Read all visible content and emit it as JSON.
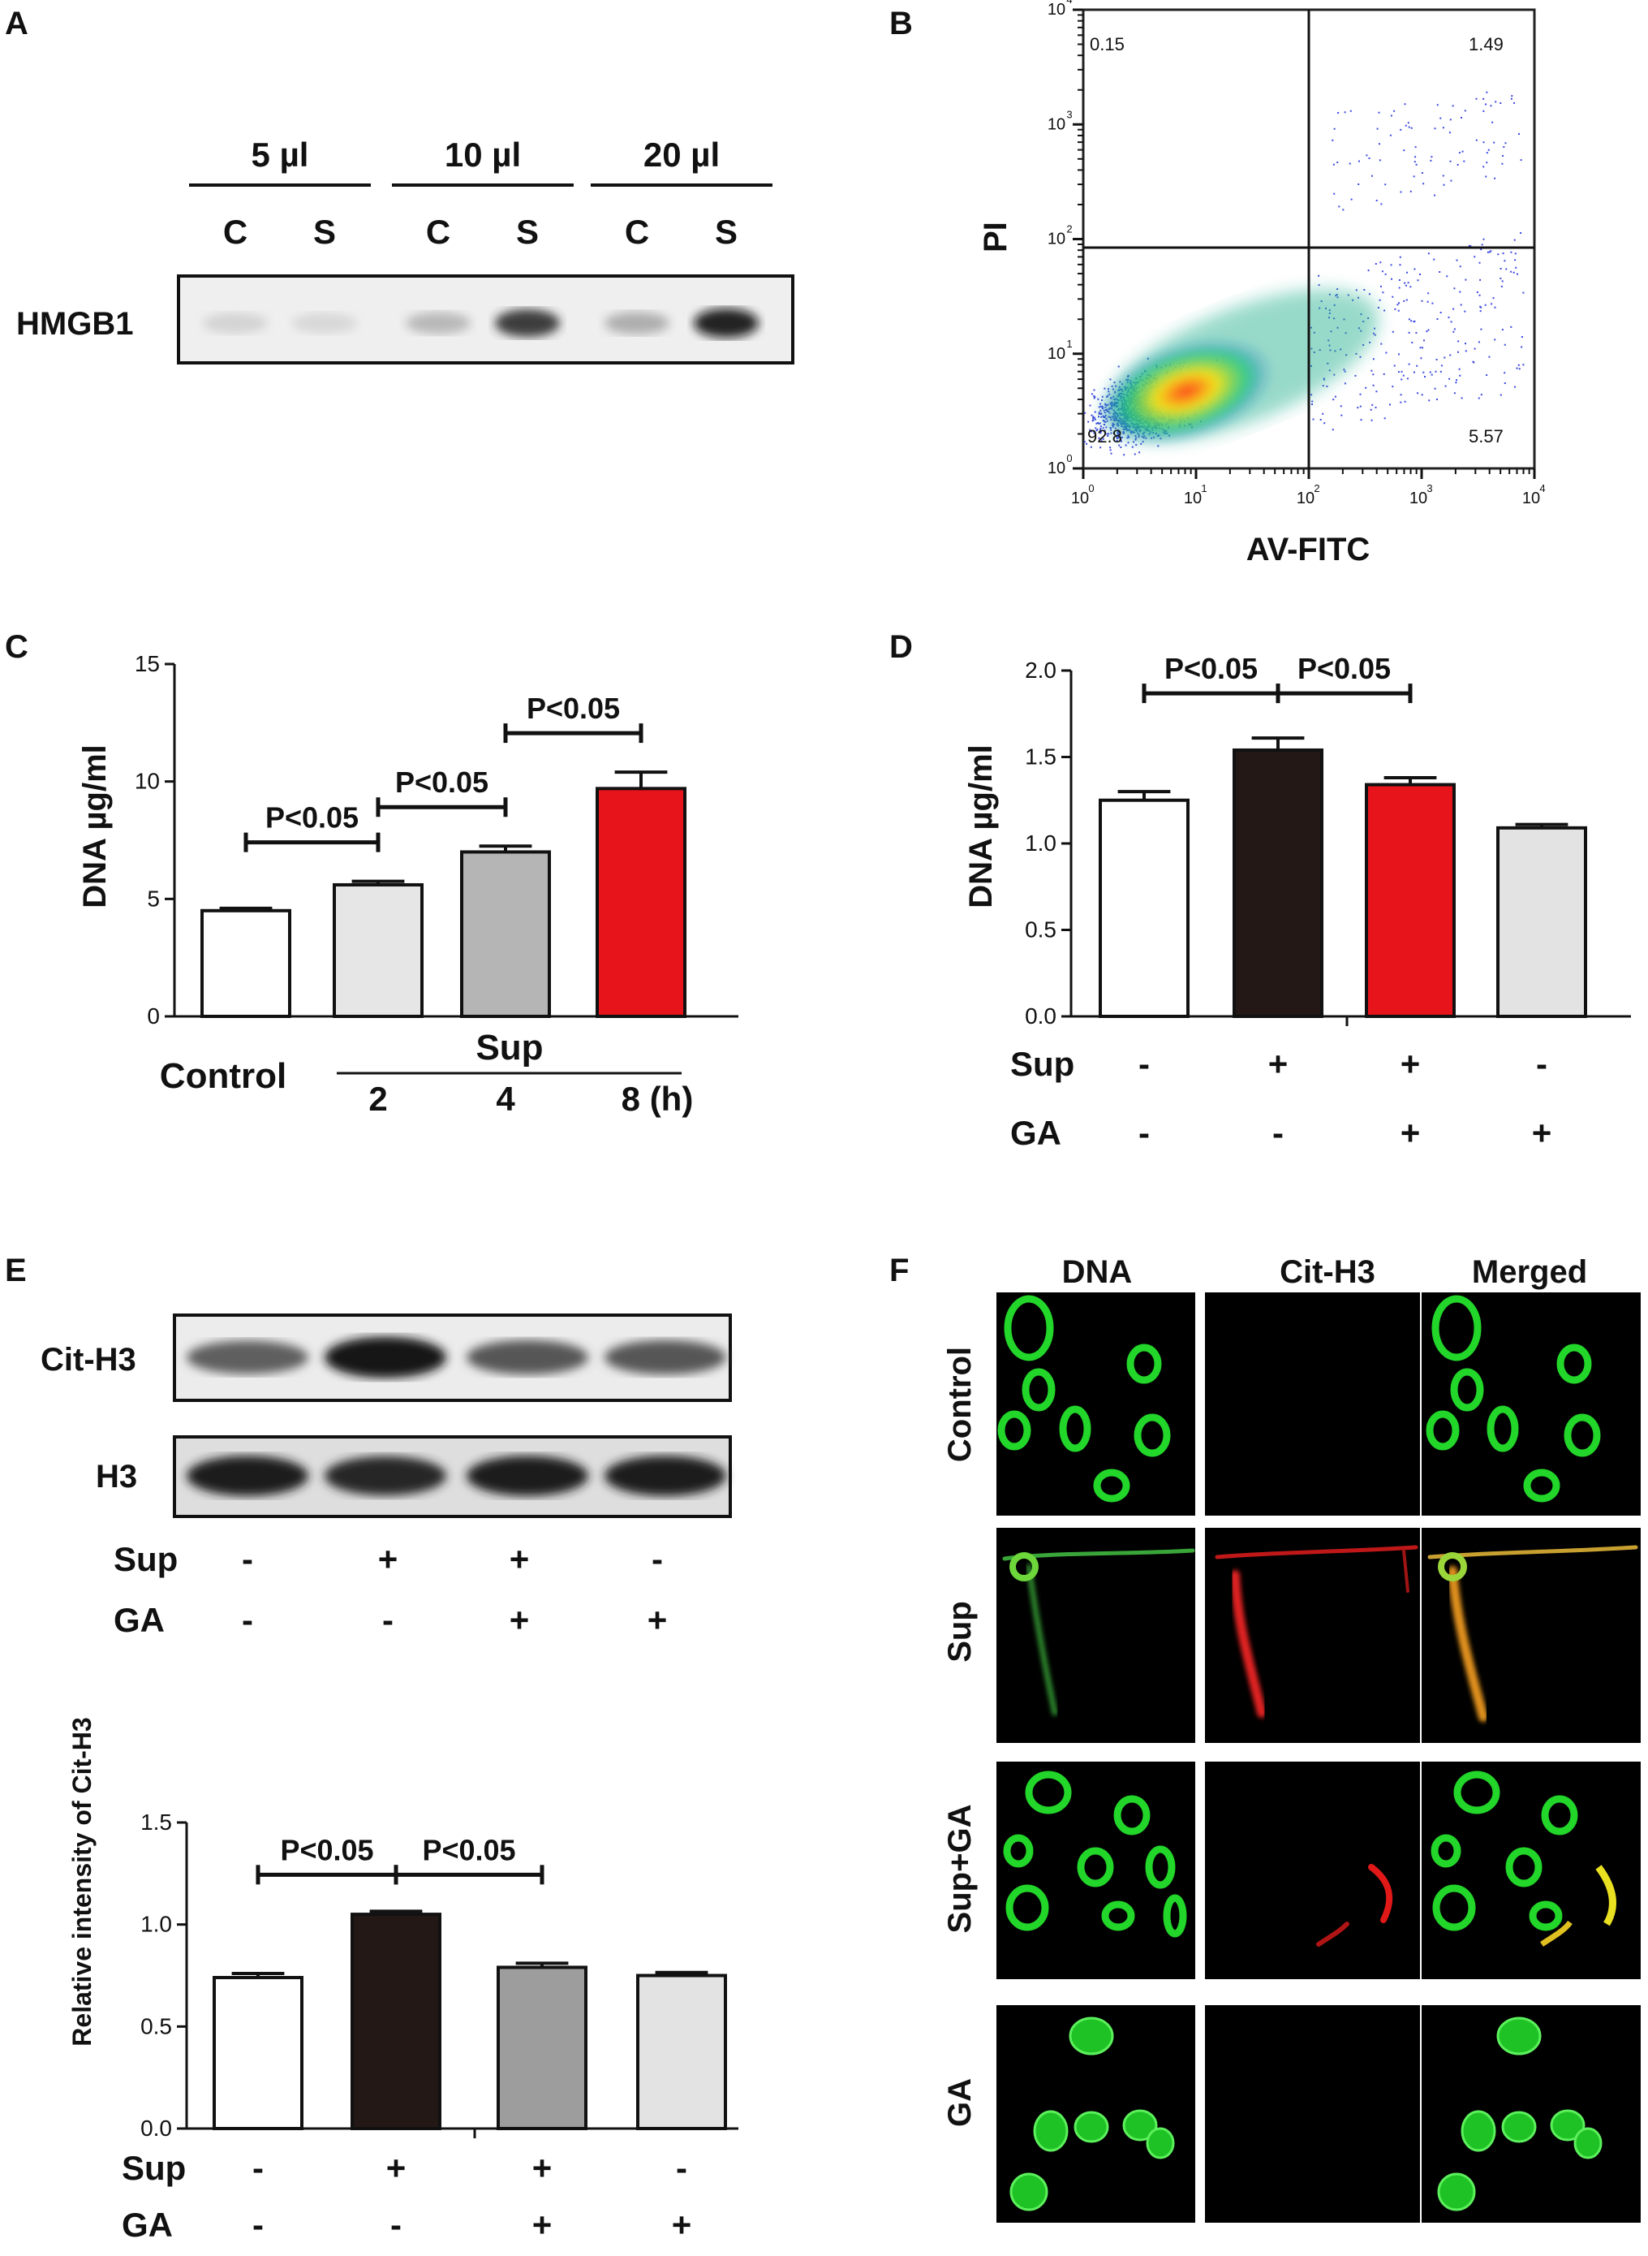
{
  "panels": {
    "A": {
      "letter": "A",
      "row_label": "HMGB1",
      "groups": [
        {
          "label": "5 µl",
          "lanes": [
            "C",
            "S"
          ]
        },
        {
          "label": "10 µl",
          "lanes": [
            "C",
            "S"
          ]
        },
        {
          "label": "20 µl",
          "lanes": [
            "C",
            "S"
          ]
        }
      ],
      "band_intensity": [
        0.12,
        0.1,
        0.25,
        0.85,
        0.3,
        1.0
      ]
    },
    "B": {
      "letter": "B",
      "xlabel": "AV-FITC",
      "ylabel": "PI",
      "ticks": [
        "10",
        "10",
        "10",
        "10",
        "10"
      ],
      "tick_exponents": [
        "0",
        "1",
        "2",
        "3",
        "4"
      ],
      "quadrants": {
        "upper_left": "0.15",
        "upper_right": "1.49",
        "lower_left": "92.8",
        "lower_right": "5.57"
      }
    },
    "E": {
      "letter": "E",
      "blots": [
        {
          "label": "Cit-H3",
          "band_intensity": [
            0.55,
            0.95,
            0.6,
            0.6
          ]
        },
        {
          "label": "H3",
          "band_intensity": [
            0.9,
            0.85,
            0.9,
            0.9
          ]
        }
      ],
      "treatment_rows": [
        {
          "label": "Sup",
          "values": [
            "-",
            "+",
            "+",
            "-"
          ]
        },
        {
          "label": "GA",
          "values": [
            "-",
            "-",
            "+",
            "+"
          ]
        }
      ]
    },
    "F": {
      "letter": "F",
      "columns": [
        "DNA",
        "Cit-H3",
        "Merged"
      ],
      "rows": [
        "Control",
        "Sup",
        "Sup+GA",
        "GA"
      ]
    }
  },
  "chart_data": [
    {
      "panel": "C",
      "letter": "C",
      "type": "bar",
      "ylabel": "DNA µg/ml",
      "ylim": [
        0,
        15
      ],
      "yticks": [
        "0",
        "5",
        "10",
        "15"
      ],
      "categories": [
        "Control",
        "2",
        "4",
        "8 (h)"
      ],
      "group_label": "Sup",
      "values": [
        4.5,
        5.6,
        7.0,
        9.7
      ],
      "errors": [
        0.1,
        0.15,
        0.25,
        0.7
      ],
      "colors": [
        "#ffffff",
        "#e6e6e6",
        "#b5b5b5",
        "#e8141c"
      ],
      "comparisons": [
        {
          "from": 0,
          "to": 1,
          "label": "P<0.05"
        },
        {
          "from": 1,
          "to": 2,
          "label": "P<0.05"
        },
        {
          "from": 2,
          "to": 3,
          "label": "P<0.05"
        }
      ]
    },
    {
      "panel": "D",
      "letter": "D",
      "type": "bar",
      "ylabel": "DNA µg/ml",
      "ylim": [
        0,
        2.0
      ],
      "yticks": [
        "0.0",
        "0.5",
        "1.0",
        "1.5",
        "2.0"
      ],
      "values": [
        1.25,
        1.54,
        1.34,
        1.09
      ],
      "errors": [
        0.05,
        0.07,
        0.04,
        0.02
      ],
      "colors": [
        "#ffffff",
        "#231816",
        "#e8141c",
        "#e3e3e3"
      ],
      "treatment_rows": [
        {
          "label": "Sup",
          "values": [
            "-",
            "+",
            "+",
            "-"
          ]
        },
        {
          "label": "GA",
          "values": [
            "-",
            "-",
            "+",
            "+"
          ]
        }
      ],
      "comparisons": [
        {
          "from": 0,
          "to": 1,
          "label": "P<0.05"
        },
        {
          "from": 1,
          "to": 2,
          "label": "P<0.05"
        }
      ]
    },
    {
      "panel": "E",
      "type": "bar",
      "ylabel": "Relative intensity of Cit-H3",
      "ylim": [
        0,
        1.5
      ],
      "yticks": [
        "0.0",
        "0.5",
        "1.0",
        "1.5"
      ],
      "values": [
        0.74,
        1.05,
        0.79,
        0.75
      ],
      "errors": [
        0.02,
        0.015,
        0.02,
        0.015
      ],
      "colors": [
        "#ffffff",
        "#231816",
        "#9d9d9d",
        "#e3e3e3"
      ],
      "treatment_rows": [
        {
          "label": "Sup",
          "values": [
            "-",
            "+",
            "+",
            "-"
          ]
        },
        {
          "label": "GA",
          "values": [
            "-",
            "-",
            "+",
            "+"
          ]
        }
      ],
      "comparisons": [
        {
          "from": 0,
          "to": 1,
          "label": "P<0.05"
        },
        {
          "from": 1,
          "to": 2,
          "label": "P<0.05"
        }
      ]
    }
  ]
}
